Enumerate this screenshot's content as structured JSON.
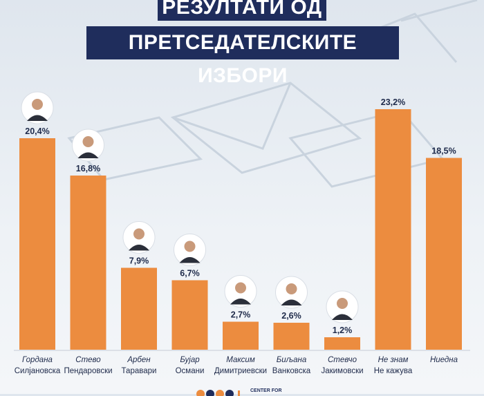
{
  "header": {
    "line1": "РЕЗУЛТАТИ ОД",
    "line2": "ПРЕТСЕДАТЕЛСКИТЕ ИЗБОРИ"
  },
  "colors": {
    "bar": "#ec8c3f",
    "title_bg": "#1f2d5c",
    "text": "#1e2a4a"
  },
  "chart_data": {
    "type": "bar",
    "categories": [
      [
        "Гордана",
        "Силјановска"
      ],
      [
        "Стево",
        "Пендаровски"
      ],
      [
        "Арбен",
        "Таравари"
      ],
      [
        "Бујар",
        "Османи"
      ],
      [
        "Максим",
        "Димитриевски"
      ],
      [
        "Биљана",
        "Ванковска"
      ],
      [
        "Стевчо",
        "Јакимовски"
      ],
      [
        "Не знам",
        "Не кажува"
      ],
      [
        "Ниедна",
        ""
      ]
    ],
    "values": [
      20.4,
      16.8,
      7.9,
      6.7,
      2.7,
      2.6,
      1.2,
      23.2,
      18.5
    ],
    "value_labels": [
      "20,4%",
      "16,8%",
      "7,9%",
      "6,7%",
      "2,7%",
      "2,6%",
      "1,2%",
      "23,2%",
      "18,5%"
    ],
    "portraits": [
      true,
      true,
      true,
      true,
      true,
      true,
      true,
      false,
      false
    ],
    "ylim": [
      0,
      24
    ],
    "grid": false,
    "legend": "none"
  },
  "footer": {
    "org": "CENTER FOR"
  }
}
